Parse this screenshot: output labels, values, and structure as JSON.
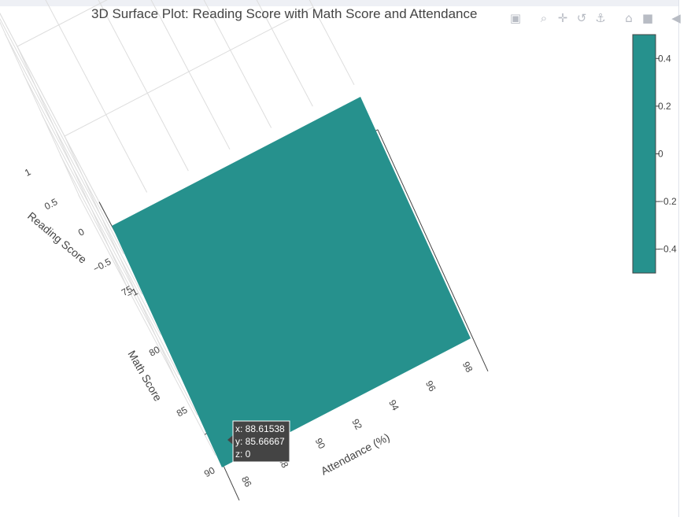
{
  "title": "3D Surface Plot: Reading Score with Math Score and Attendance",
  "modebar": {
    "icons": [
      "camera-icon",
      "zoom-icon",
      "pan-icon",
      "orbit-icon",
      "turntable-icon",
      "home-icon",
      "camera-view-icon",
      "toggle-spikelines-icon",
      "plotly-logo-icon"
    ]
  },
  "chart_data": {
    "type": "surface",
    "title": "3D Surface Plot: Reading Score with Math Score and Attendance",
    "surface_color": "#26918d",
    "x_axis": {
      "title": "Attendance (%)",
      "range": [
        85.5,
        99
      ],
      "ticks": [
        86,
        88,
        90,
        92,
        94,
        96,
        98
      ]
    },
    "y_axis": {
      "title": "Math Score",
      "range": [
        70,
        90
      ],
      "ticks": [
        75,
        80,
        85,
        90
      ]
    },
    "z_axis": {
      "title": "Reading Score",
      "range": [
        -1,
        1
      ],
      "ticks": [
        "1",
        "0.5",
        "0",
        "−0.5",
        "−1"
      ]
    },
    "z_values": "constant 0",
    "colorbar": {
      "ticks": [
        "0.4",
        "0.2",
        "0",
        "−0.2",
        "−0.4"
      ],
      "range": [
        -0.5,
        0.5
      ],
      "color": "#26918d"
    },
    "hover": {
      "x": "x: 88.61538",
      "y": "y: 85.66667",
      "z": "z: 0"
    }
  }
}
